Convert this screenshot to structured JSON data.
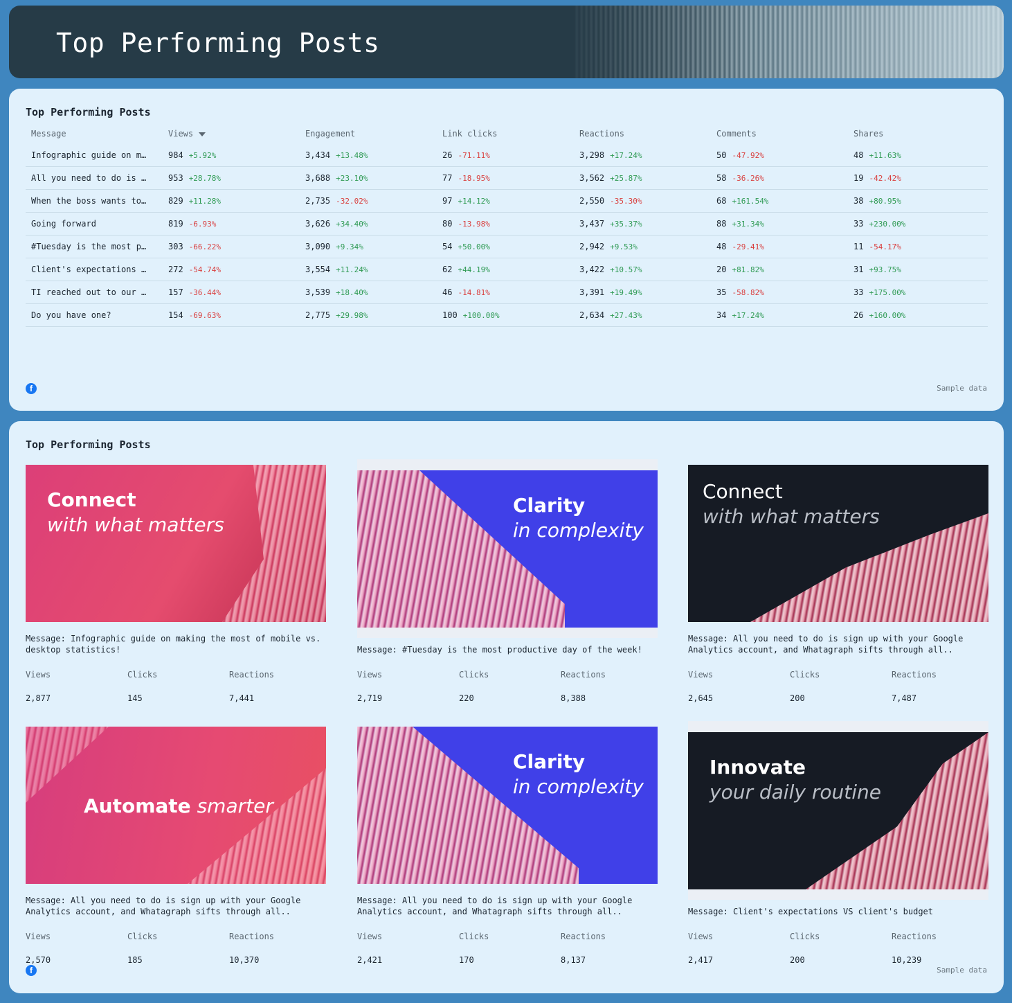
{
  "page": {
    "title": "Top Performing Posts"
  },
  "table_card": {
    "title": "Top Performing Posts",
    "columns": [
      "Message",
      "Views",
      "Engagement",
      "Link clicks",
      "Reactions",
      "Comments",
      "Shares"
    ],
    "rows": [
      {
        "message": "Infographic guide on m…",
        "views": "984",
        "views_d": "+5.92%",
        "eng": "3,434",
        "eng_d": "+13.48%",
        "clicks": "26",
        "clicks_d": "-71.11%",
        "reac": "3,298",
        "reac_d": "+17.24%",
        "comm": "50",
        "comm_d": "-47.92%",
        "shares": "48",
        "shares_d": "+11.63%"
      },
      {
        "message": "All you need to do is …",
        "views": "953",
        "views_d": "+28.78%",
        "eng": "3,688",
        "eng_d": "+23.10%",
        "clicks": "77",
        "clicks_d": "-18.95%",
        "reac": "3,562",
        "reac_d": "+25.87%",
        "comm": "58",
        "comm_d": "-36.26%",
        "shares": "19",
        "shares_d": "-42.42%"
      },
      {
        "message": "When the boss wants to…",
        "views": "829",
        "views_d": "+11.28%",
        "eng": "2,735",
        "eng_d": "-32.02%",
        "clicks": "97",
        "clicks_d": "+14.12%",
        "reac": "2,550",
        "reac_d": "-35.30%",
        "comm": "68",
        "comm_d": "+161.54%",
        "shares": "38",
        "shares_d": "+80.95%"
      },
      {
        "message": "Going forward",
        "views": "819",
        "views_d": "-6.93%",
        "eng": "3,626",
        "eng_d": "+34.40%",
        "clicks": "80",
        "clicks_d": "-13.98%",
        "reac": "3,437",
        "reac_d": "+35.37%",
        "comm": "88",
        "comm_d": "+31.34%",
        "shares": "33",
        "shares_d": "+230.00%"
      },
      {
        "message": "#Tuesday is the most p…",
        "views": "303",
        "views_d": "-66.22%",
        "eng": "3,090",
        "eng_d": "+9.34%",
        "clicks": "54",
        "clicks_d": "+50.00%",
        "reac": "2,942",
        "reac_d": "+9.53%",
        "comm": "48",
        "comm_d": "-29.41%",
        "shares": "11",
        "shares_d": "-54.17%"
      },
      {
        "message": "Client's expectations …",
        "views": "272",
        "views_d": "-54.74%",
        "eng": "3,554",
        "eng_d": "+11.24%",
        "clicks": "62",
        "clicks_d": "+44.19%",
        "reac": "3,422",
        "reac_d": "+10.57%",
        "comm": "20",
        "comm_d": "+81.82%",
        "shares": "31",
        "shares_d": "+93.75%"
      },
      {
        "message": "TI reached out to our …",
        "views": "157",
        "views_d": "-36.44%",
        "eng": "3,539",
        "eng_d": "+18.40%",
        "clicks": "46",
        "clicks_d": "-14.81%",
        "reac": "3,391",
        "reac_d": "+19.49%",
        "comm": "35",
        "comm_d": "-58.82%",
        "shares": "33",
        "shares_d": "+175.00%"
      },
      {
        "message": "Do you have one?",
        "views": "154",
        "views_d": "-69.63%",
        "eng": "2,775",
        "eng_d": "+29.98%",
        "clicks": "100",
        "clicks_d": "+100.00%",
        "reac": "2,634",
        "reac_d": "+27.43%",
        "comm": "34",
        "comm_d": "+17.24%",
        "shares": "26",
        "shares_d": "+160.00%"
      }
    ],
    "footer": {
      "icon": "facebook-icon",
      "note": "Sample data"
    }
  },
  "posts_card": {
    "title": "Top Performing Posts",
    "stat_labels": {
      "views": "Views",
      "clicks": "Clicks",
      "reactions": "Reactions"
    },
    "posts": [
      {
        "headline": "Connect",
        "subline": "with what matters",
        "message": "Message: Infographic guide on making the most of mobile vs. desktop statistics!",
        "views": "2,877",
        "clicks": "145",
        "reactions": "7,441"
      },
      {
        "headline": "Clarity",
        "subline": "in complexity",
        "message": "Message: #Tuesday is the most productive day of the week!",
        "views": "2,719",
        "clicks": "220",
        "reactions": "8,388"
      },
      {
        "headline": "Connect",
        "subline": "with what matters",
        "message": "Message: All you need to do is sign up with your Google Analytics account, and Whatagraph sifts through all..",
        "views": "2,645",
        "clicks": "200",
        "reactions": "7,487"
      },
      {
        "headline": "Automate",
        "subline": "smarter",
        "message": "Message: All you need to do is sign up with your Google Analytics account, and Whatagraph sifts through all..",
        "views": "2,570",
        "clicks": "185",
        "reactions": "10,370"
      },
      {
        "headline": "Clarity",
        "subline": "in complexity",
        "message": "Message: All you need to do is sign up with your Google Analytics account, and Whatagraph sifts through all..",
        "views": "2,421",
        "clicks": "170",
        "reactions": "8,137"
      },
      {
        "headline": "Innovate",
        "subline": "your daily routine",
        "message": "Message: Client's expectations VS client's budget",
        "views": "2,417",
        "clicks": "200",
        "reactions": "10,239"
      }
    ],
    "footer": {
      "icon": "facebook-icon",
      "note": "Sample data"
    }
  },
  "colors": {
    "page_bg": "#3f86bf",
    "header_bg": "#263b47",
    "card_bg": "#e1f1fc",
    "positive": "#2f9a54",
    "negative": "#d94040",
    "facebook": "#1877f2"
  }
}
